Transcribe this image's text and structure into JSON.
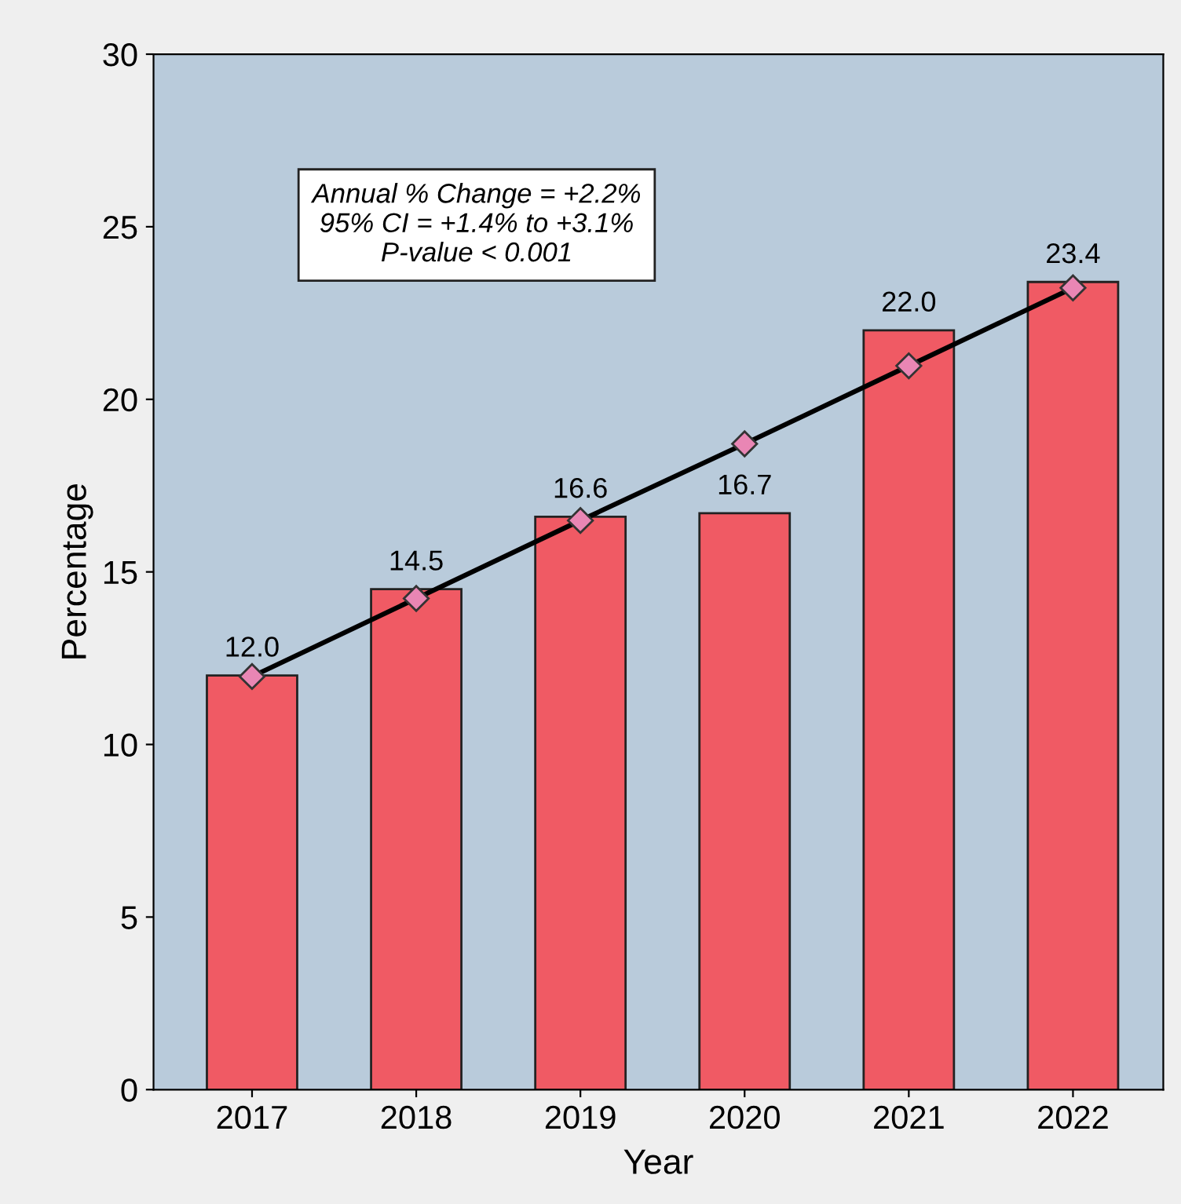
{
  "chart_data": {
    "type": "bar",
    "xlabel": "Year",
    "ylabel": "Percentage",
    "categories": [
      "2017",
      "2018",
      "2019",
      "2020",
      "2021",
      "2022"
    ],
    "series": [
      {
        "color": "#f05a64",
        "values": [
          12.0,
          14.5,
          16.6,
          16.7,
          22.0,
          23.4
        ],
        "value_labels": [
          "12.0",
          "14.5",
          "16.6",
          "16.7",
          "22.0",
          "23.4"
        ]
      },
      {
        "type": "line",
        "color": "#000000",
        "values": [
          11.97,
          14.23,
          16.49,
          18.71,
          20.97,
          23.23
        ],
        "marker": "diamond"
      }
    ],
    "ylim": [
      0,
      30
    ],
    "yticks": [
      0,
      5,
      10,
      15,
      20,
      25,
      30
    ],
    "grid": false,
    "annotations": [
      "Annual % Change = +2.2%\n95% CI = +1.4% to +3.1%\nP-value < 0.001"
    ]
  }
}
